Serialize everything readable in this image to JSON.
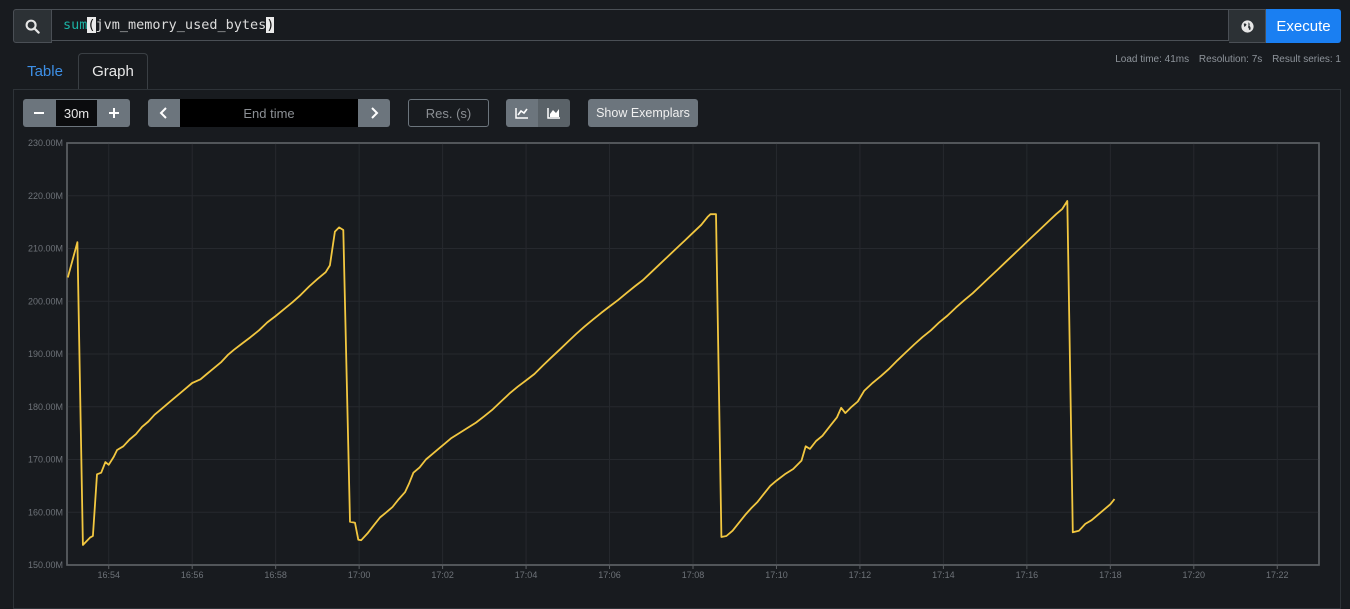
{
  "query": {
    "func": "sum",
    "open_paren": "(",
    "metric": "jvm_memory_used_bytes",
    "close_paren": ")",
    "execute_label": "Execute"
  },
  "tabs": {
    "table": "Table",
    "graph": "Graph"
  },
  "stats": {
    "load_time": "Load time: 41ms",
    "resolution": "Resolution: 7s",
    "result_series": "Result series: 1"
  },
  "controls": {
    "range_value": "30m",
    "end_time_placeholder": "End time",
    "resolution_placeholder": "Res. (s)",
    "show_exemplars": "Show Exemplars"
  },
  "colors": {
    "series": "#f2c740",
    "accent": "#1a7ff2",
    "background": "#181b1f"
  },
  "chart_data": {
    "type": "line",
    "x_unit": "time",
    "x_range": [
      "16:53:00",
      "17:23:00"
    ],
    "ylim": [
      150,
      230
    ],
    "y_unit": "M",
    "yticks": [
      "150.00M",
      "160.00M",
      "170.00M",
      "180.00M",
      "190.00M",
      "200.00M",
      "210.00M",
      "220.00M",
      "230.00M"
    ],
    "yticks_values": [
      150,
      160,
      170,
      180,
      190,
      200,
      210,
      220,
      230
    ],
    "xticks": [
      "16:54",
      "16:56",
      "16:58",
      "17:00",
      "17:02",
      "17:04",
      "17:06",
      "17:08",
      "17:10",
      "17:12",
      "17:14",
      "17:16",
      "17:18",
      "17:20",
      "17:22"
    ],
    "xticks_minutes": [
      1,
      3,
      5,
      7,
      9,
      11,
      13,
      15,
      17,
      19,
      21,
      23,
      25,
      27,
      29
    ],
    "grid": true,
    "series": [
      {
        "points": [
          [
            0.02,
            204.5
          ],
          [
            0.25,
            211.2
          ],
          [
            0.38,
            153.8
          ],
          [
            0.55,
            155.2
          ],
          [
            0.62,
            155.5
          ],
          [
            0.72,
            167.2
          ],
          [
            0.82,
            167.5
          ],
          [
            0.92,
            169.5
          ],
          [
            1.0,
            169.0
          ],
          [
            1.12,
            170.5
          ],
          [
            1.2,
            171.8
          ],
          [
            1.35,
            172.5
          ],
          [
            1.5,
            173.8
          ],
          [
            1.65,
            174.8
          ],
          [
            1.8,
            176.2
          ],
          [
            1.95,
            177.2
          ],
          [
            2.1,
            178.5
          ],
          [
            2.25,
            179.5
          ],
          [
            2.4,
            180.5
          ],
          [
            2.55,
            181.5
          ],
          [
            2.7,
            182.5
          ],
          [
            2.85,
            183.5
          ],
          [
            3.0,
            184.5
          ],
          [
            3.2,
            185.2
          ],
          [
            3.35,
            186.2
          ],
          [
            3.5,
            187.2
          ],
          [
            3.7,
            188.5
          ],
          [
            3.85,
            189.8
          ],
          [
            4.0,
            190.8
          ],
          [
            4.2,
            192.0
          ],
          [
            4.4,
            193.2
          ],
          [
            4.6,
            194.5
          ],
          [
            4.8,
            196.0
          ],
          [
            5.0,
            197.2
          ],
          [
            5.2,
            198.5
          ],
          [
            5.4,
            199.8
          ],
          [
            5.6,
            201.2
          ],
          [
            5.8,
            202.8
          ],
          [
            6.0,
            204.2
          ],
          [
            6.2,
            205.5
          ],
          [
            6.3,
            206.8
          ],
          [
            6.42,
            213.2
          ],
          [
            6.52,
            214.0
          ],
          [
            6.62,
            213.5
          ],
          [
            6.78,
            158.2
          ],
          [
            6.9,
            158.0
          ],
          [
            6.98,
            154.8
          ],
          [
            7.05,
            154.7
          ],
          [
            7.2,
            156.0
          ],
          [
            7.35,
            157.5
          ],
          [
            7.5,
            159.0
          ],
          [
            7.65,
            160.0
          ],
          [
            7.8,
            161.0
          ],
          [
            7.95,
            162.5
          ],
          [
            8.1,
            163.8
          ],
          [
            8.2,
            165.5
          ],
          [
            8.3,
            167.5
          ],
          [
            8.45,
            168.5
          ],
          [
            8.6,
            170.0
          ],
          [
            8.75,
            171.0
          ],
          [
            8.9,
            172.0
          ],
          [
            9.05,
            173.0
          ],
          [
            9.2,
            174.0
          ],
          [
            9.4,
            175.0
          ],
          [
            9.6,
            176.0
          ],
          [
            9.8,
            177.0
          ],
          [
            10.0,
            178.2
          ],
          [
            10.2,
            179.5
          ],
          [
            10.4,
            181.0
          ],
          [
            10.6,
            182.5
          ],
          [
            10.8,
            183.8
          ],
          [
            11.0,
            185.0
          ],
          [
            11.2,
            186.2
          ],
          [
            11.4,
            187.8
          ],
          [
            11.6,
            189.3
          ],
          [
            11.8,
            190.8
          ],
          [
            12.0,
            192.3
          ],
          [
            12.2,
            193.8
          ],
          [
            12.4,
            195.2
          ],
          [
            12.6,
            196.5
          ],
          [
            12.8,
            197.8
          ],
          [
            13.0,
            199.0
          ],
          [
            13.2,
            200.2
          ],
          [
            13.4,
            201.5
          ],
          [
            13.6,
            202.8
          ],
          [
            13.8,
            204.0
          ],
          [
            14.0,
            205.5
          ],
          [
            14.2,
            207.0
          ],
          [
            14.4,
            208.5
          ],
          [
            14.6,
            210.0
          ],
          [
            14.8,
            211.5
          ],
          [
            15.0,
            213.0
          ],
          [
            15.2,
            214.5
          ],
          [
            15.35,
            216.0
          ],
          [
            15.42,
            216.5
          ],
          [
            15.55,
            216.5
          ],
          [
            15.68,
            155.3
          ],
          [
            15.8,
            155.5
          ],
          [
            15.95,
            156.5
          ],
          [
            16.1,
            158.0
          ],
          [
            16.25,
            159.5
          ],
          [
            16.4,
            160.8
          ],
          [
            16.55,
            162.0
          ],
          [
            16.7,
            163.5
          ],
          [
            16.85,
            165.0
          ],
          [
            17.0,
            166.0
          ],
          [
            17.2,
            167.2
          ],
          [
            17.4,
            168.2
          ],
          [
            17.6,
            169.8
          ],
          [
            17.7,
            172.5
          ],
          [
            17.8,
            172.0
          ],
          [
            17.95,
            173.5
          ],
          [
            18.1,
            174.5
          ],
          [
            18.3,
            176.5
          ],
          [
            18.45,
            178.0
          ],
          [
            18.55,
            179.8
          ],
          [
            18.65,
            178.8
          ],
          [
            18.8,
            180.0
          ],
          [
            18.95,
            181.0
          ],
          [
            19.1,
            183.0
          ],
          [
            19.3,
            184.5
          ],
          [
            19.5,
            185.8
          ],
          [
            19.7,
            187.2
          ],
          [
            19.9,
            188.8
          ],
          [
            20.1,
            190.3
          ],
          [
            20.3,
            191.8
          ],
          [
            20.5,
            193.2
          ],
          [
            20.7,
            194.5
          ],
          [
            20.9,
            196.0
          ],
          [
            21.1,
            197.3
          ],
          [
            21.3,
            198.8
          ],
          [
            21.5,
            200.2
          ],
          [
            21.7,
            201.5
          ],
          [
            21.9,
            203.0
          ],
          [
            22.1,
            204.5
          ],
          [
            22.3,
            206.0
          ],
          [
            22.5,
            207.5
          ],
          [
            22.7,
            209.0
          ],
          [
            22.9,
            210.5
          ],
          [
            23.1,
            212.0
          ],
          [
            23.3,
            213.5
          ],
          [
            23.5,
            215.0
          ],
          [
            23.7,
            216.5
          ],
          [
            23.85,
            217.5
          ],
          [
            23.97,
            219.0
          ],
          [
            24.1,
            156.2
          ],
          [
            24.25,
            156.5
          ],
          [
            24.4,
            157.8
          ],
          [
            24.55,
            158.5
          ],
          [
            24.7,
            159.5
          ],
          [
            24.85,
            160.5
          ],
          [
            25.0,
            161.5
          ],
          [
            25.1,
            162.5
          ]
        ]
      }
    ]
  }
}
